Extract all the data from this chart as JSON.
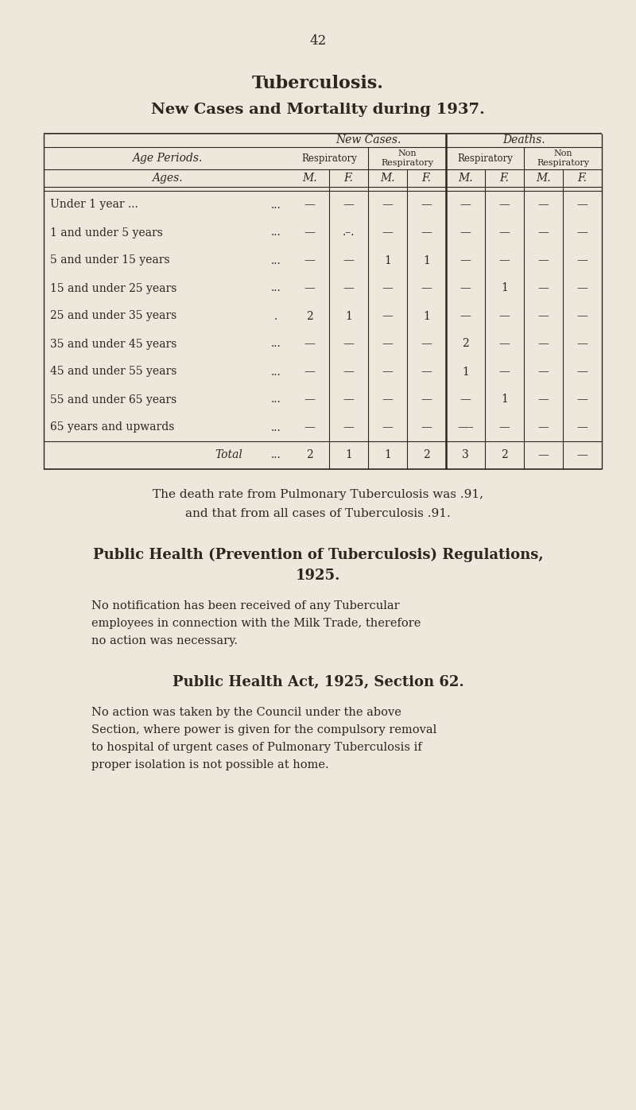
{
  "bg_color": "#ede8db",
  "text_color": "#2c2520",
  "page_number": "42",
  "title1": "Tuberculosis.",
  "title2": "New Cases and Mortality during 1937.",
  "rows": [
    [
      "Under 1 year ...",
      "...",
      "—",
      "—",
      "—",
      "—",
      "—",
      "—",
      "—",
      "—"
    ],
    [
      "1 and under 5 years",
      "...",
      "—",
      ".–.",
      "—",
      "—",
      "—",
      "—",
      "—",
      "—"
    ],
    [
      "5 and under 15 years",
      "...",
      "—",
      "—",
      "1",
      "1",
      "—",
      "—",
      "—",
      "—"
    ],
    [
      "15 and under 25 years",
      "...",
      "—",
      "—",
      "—",
      "—",
      "—",
      "1",
      "—",
      "—"
    ],
    [
      "25 and under 35 years",
      ".",
      "2",
      "1",
      "—",
      "1",
      "—",
      "—",
      "—",
      "—"
    ],
    [
      "35 and under 45 years",
      "...",
      "—",
      "—",
      "—",
      "—",
      "2",
      "—",
      "—",
      "—"
    ],
    [
      "45 and under 55 years",
      "...",
      "—",
      "—",
      "—",
      "—",
      "1",
      "—",
      "—",
      "—"
    ],
    [
      "55 and under 65 years",
      "...",
      "—",
      "—",
      "—",
      "—",
      "—",
      "1",
      "—",
      "—"
    ],
    [
      "65 years and upwards",
      "...",
      "—",
      "—",
      "—",
      "—",
      "—–",
      "—",
      "—",
      "—"
    ]
  ],
  "total_row": [
    "Total",
    "...",
    "2",
    "1",
    "1",
    "2",
    "3",
    "2",
    "—",
    "—"
  ],
  "para1_line1": "The death rate from Pulmonary Tuberculosis was .91,",
  "para1_line2": "and that from all cases of Tuberculosis .91.",
  "section2_title_line1": "Public Health (Prevention of Tuberculosis) Regulations,",
  "section2_title_line2": "1925.",
  "section2_body_line1": "No notification has been received of any Tubercular",
  "section2_body_line2": "employees in connection with the Milk Trade, therefore",
  "section2_body_line3": "no action was necessary.",
  "section3_title": "Public Health Act, 1925, Section 62.",
  "section3_body_line1": "No action was taken by the Council under the above",
  "section3_body_line2": "Section, where power is given for the compulsory removal",
  "section3_body_line3": "to hospital of urgent cases of Pulmonary Tuberculosis if",
  "section3_body_line4": "proper isolation is not possible at home."
}
